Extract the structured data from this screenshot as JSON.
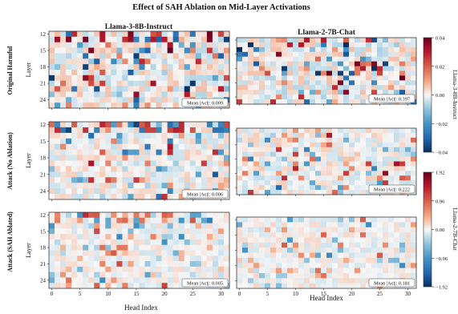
{
  "figure": {
    "title": "Effect of SAH Ablation on Mid-Layer Activations",
    "xlabel": "Head Index",
    "row_labels": [
      "Original Harmful",
      "Attack (No Ablation)",
      "Attack (SAH Ablated)"
    ],
    "column_titles": [
      "Llama-3-8B-Instruct",
      "Llama-2-7B-Chat"
    ],
    "ylabel": "Layer"
  },
  "chart_data": {
    "type": "heatmap",
    "x_ticks": [
      0,
      5,
      10,
      15,
      20,
      25,
      30
    ],
    "y_ticks": [
      12,
      15,
      18,
      21,
      24
    ],
    "x_range": [
      0,
      31
    ],
    "y_range": [
      12,
      25
    ],
    "colormap": "RdBu_r",
    "panels": [
      {
        "row": 0,
        "col": 0,
        "model": "Llama-3-8B-Instruct",
        "condition": "Original Harmful",
        "annotation": "Mean |Act|: 0.009",
        "scale": 0.04
      },
      {
        "row": 0,
        "col": 1,
        "model": "Llama-2-7B-Chat",
        "condition": "Original Harmful",
        "annotation": "Mean |Act|: 0.397",
        "scale": 1.92
      },
      {
        "row": 1,
        "col": 0,
        "model": "Llama-3-8B-Instruct",
        "condition": "Attack (No Ablation)",
        "annotation": "Mean |Act|: 0.006",
        "scale": 0.04
      },
      {
        "row": 1,
        "col": 1,
        "model": "Llama-2-7B-Chat",
        "condition": "Attack (No Ablation)",
        "annotation": "Mean |Act|: 0.222",
        "scale": 1.92
      },
      {
        "row": 2,
        "col": 0,
        "model": "Llama-3-8B-Instruct",
        "condition": "Attack (SAH Ablated)",
        "annotation": "Mean |Act|: 0.005",
        "scale": 0.04
      },
      {
        "row": 2,
        "col": 1,
        "model": "Llama-2-7B-Chat",
        "condition": "Attack (SAH Ablated)",
        "annotation": "Mean |Act|: 0.181",
        "scale": 1.92
      }
    ],
    "colorbars": [
      {
        "label": "Llama-3-8B-Instruct",
        "ticks": [
          "0.04",
          "0.02",
          "0.00",
          "−0.02",
          "−0.04"
        ],
        "min": -0.04,
        "max": 0.04
      },
      {
        "label": "Llama-2-7B-Chat",
        "ticks": [
          "1.92",
          "0.96",
          "0.00",
          "−0.96",
          "−1.92"
        ],
        "min": -1.92,
        "max": 1.92
      }
    ]
  }
}
